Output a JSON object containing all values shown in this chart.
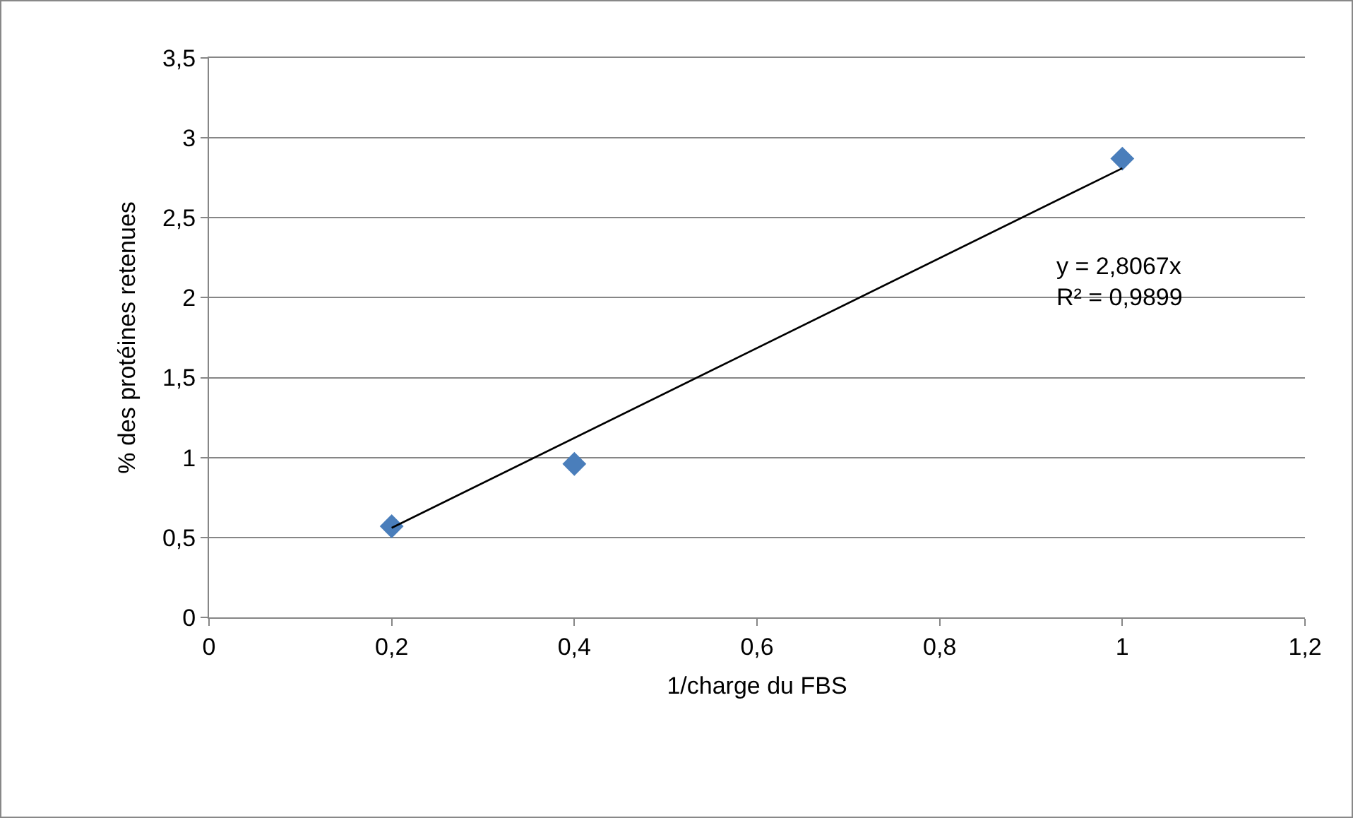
{
  "chart_data": {
    "type": "scatter",
    "xlabel": "1/charge du FBS",
    "ylabel": "% des protéines retenues",
    "xlim": [
      0,
      1.2
    ],
    "xticks": [
      0,
      {
        "value": 0.2,
        "label": "0,2"
      },
      {
        "value": 0.4,
        "label": "0,4"
      },
      {
        "value": 0.6,
        "label": "0,6"
      },
      {
        "value": 0.8,
        "label": "0,8"
      },
      1,
      {
        "value": 1.2,
        "label": "1,2"
      }
    ],
    "ylim": [
      0,
      3.5
    ],
    "yticks": [
      0,
      {
        "value": 0.5,
        "label": "0,5"
      },
      1,
      {
        "value": 1.5,
        "label": "1,5"
      },
      2,
      {
        "value": 2.5,
        "label": "2,5"
      },
      3,
      {
        "value": 3.5,
        "label": "3,5"
      }
    ],
    "grid": "y",
    "marker": "diamond",
    "series": [
      {
        "color": "#4a7ebb",
        "x": [
          0.2,
          0.4,
          1
        ],
        "values": [
          0.57,
          0.96,
          2.87
        ]
      },
      {
        "type": "line",
        "color": "#000000",
        "marker": "none",
        "x": [
          0.2,
          1
        ],
        "values": [
          0.56,
          2.81
        ]
      }
    ],
    "annotations": [
      "y = 2,8067x\nR² = 0,9899"
    ]
  }
}
